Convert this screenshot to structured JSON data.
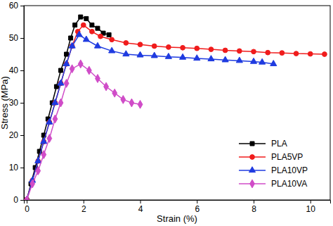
{
  "chart_data": {
    "type": "line",
    "x_label": "Strain (%)",
    "y_label": "Stress (MPa)",
    "xlim": [
      -0.1,
      10.7
    ],
    "ylim": [
      0,
      60
    ],
    "xticks": [
      0,
      2,
      4,
      6,
      8,
      10
    ],
    "yticks": [
      0,
      10,
      20,
      30,
      40,
      50,
      60
    ],
    "legend": "lower right",
    "series": [
      {
        "name": "PLA",
        "color": "#000000",
        "marker": "square",
        "x": [
          0,
          0.15,
          0.3,
          0.45,
          0.6,
          0.75,
          0.9,
          1.05,
          1.2,
          1.4,
          1.55,
          1.7,
          1.9,
          2.1,
          2.3,
          2.5,
          2.7,
          2.9
        ],
        "values": [
          0,
          5,
          10,
          15,
          20,
          25,
          30,
          35,
          40,
          45,
          50,
          54,
          56.5,
          56,
          54,
          53,
          51.5,
          51
        ]
      },
      {
        "name": "PLA5VP",
        "color": "#f01c1c",
        "marker": "circle",
        "x": [
          0,
          0.2,
          0.4,
          0.6,
          0.8,
          1.0,
          1.2,
          1.4,
          1.6,
          1.8,
          2.0,
          2.3,
          2.6,
          3.0,
          3.5,
          4.0,
          4.5,
          5.0,
          5.5,
          6.0,
          6.5,
          7.0,
          7.5,
          8.0,
          8.5,
          9.0,
          9.5,
          10.0,
          10.5
        ],
        "values": [
          0,
          6,
          12,
          18,
          24,
          30,
          36,
          42,
          47.5,
          52,
          54,
          52,
          50.5,
          49.5,
          48.5,
          48,
          47.5,
          47.2,
          47,
          46.8,
          46.5,
          46.2,
          46,
          45.8,
          45.5,
          45.4,
          45.2,
          45.1,
          45
        ]
      },
      {
        "name": "PLA10VP",
        "color": "#1f3be0",
        "marker": "triangle",
        "x": [
          0,
          0.2,
          0.4,
          0.6,
          0.8,
          1.0,
          1.2,
          1.4,
          1.6,
          1.85,
          2.1,
          2.5,
          3.0,
          3.5,
          4.0,
          4.5,
          5.0,
          5.5,
          6.0,
          6.5,
          7.0,
          7.5,
          8.0,
          8.3,
          8.7
        ],
        "values": [
          0,
          6,
          12,
          18,
          24,
          30,
          36,
          42,
          47.5,
          51,
          49.5,
          47.5,
          46,
          45,
          44.7,
          44.5,
          44.2,
          44,
          43.7,
          43.5,
          43.2,
          43,
          42.7,
          42.5,
          42
        ]
      },
      {
        "name": "PLA10VA",
        "color": "#d04cc8",
        "marker": "diamond",
        "x": [
          0,
          0.2,
          0.4,
          0.6,
          0.8,
          1.0,
          1.2,
          1.4,
          1.6,
          1.9,
          2.2,
          2.5,
          2.8,
          3.1,
          3.4,
          3.7,
          4.0
        ],
        "values": [
          0,
          5,
          9,
          14,
          19,
          25,
          30,
          36,
          40.5,
          42,
          40,
          37.5,
          35,
          33,
          31,
          30,
          29.5
        ]
      }
    ]
  }
}
